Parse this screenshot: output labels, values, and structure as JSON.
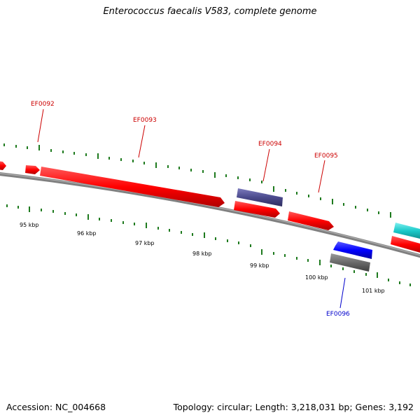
{
  "header": {
    "title": "Enterococcus faecalis V583, complete genome"
  },
  "footer": {
    "accession": "Accession: NC_004668",
    "summary": "Topology: circular; Length: 3,218,031 bp; Genes: 3,192"
  },
  "map": {
    "gene_labels": [
      {
        "name": "EF0092",
        "color": "#cc0000"
      },
      {
        "name": "EF0093",
        "color": "#cc0000"
      },
      {
        "name": "EF0094",
        "color": "#cc0000"
      },
      {
        "name": "EF0095",
        "color": "#cc0000"
      },
      {
        "name": "EF0096",
        "color": "#0000cc"
      }
    ],
    "kbp_labels": [
      "95 kbp",
      "96 kbp",
      "97 kbp",
      "98 kbp",
      "99 kbp",
      "100 kbp",
      "101 kbp"
    ],
    "colors": {
      "backbone": "#808080",
      "forward_gene": "#ff0000",
      "reverse_gene": "#0000ff",
      "feature_purple": "#4b4a8c",
      "feature_gray": "#6a6a6a",
      "feature_cyan": "#19c8c8",
      "tick": "#1e7a1e"
    }
  }
}
